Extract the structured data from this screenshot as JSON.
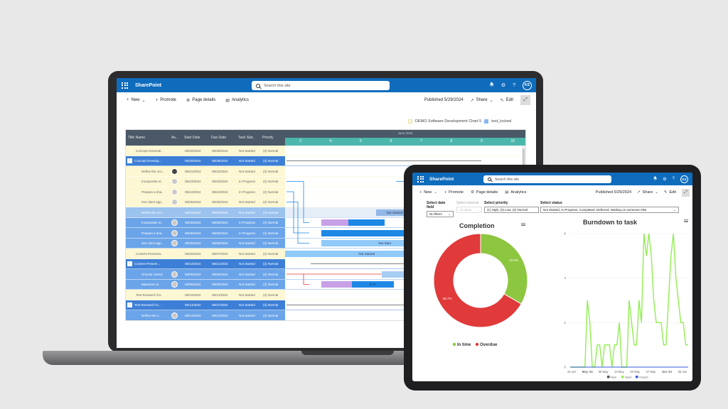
{
  "laptop": {
    "brand": "SharePoint",
    "search_placeholder": "Search this site",
    "avatar_initials": "KS",
    "commands": {
      "new": "New",
      "promote": "Promote",
      "page_details": "Page details",
      "analytics": "Analytics"
    },
    "published": "Published 5/29/2024",
    "share": "Share",
    "edit": "Edit",
    "legend": [
      "DEMO Software Development Chart 5",
      "test_locked"
    ],
    "gantt": {
      "columns": [
        "Title Name",
        "As..",
        "Start Date",
        "Due Date",
        "Task Stat..",
        "Priority"
      ],
      "month": "June 2024",
      "days": [
        "3",
        "4",
        "5",
        "6",
        "7",
        "8",
        "9",
        "10"
      ],
      "rows": [
        {
          "title": "Concept Generati..",
          "start": "05/20/2024",
          "due": "05/28/2024",
          "status": "Not Started",
          "priority": "(2) Normal",
          "style": "yellow",
          "indent": 14,
          "avatar": "",
          "exp": ""
        },
        {
          "title": "Concept Develop...",
          "start": "05/20/2024",
          "due": "06/28/2024",
          "status": "Not Started",
          "priority": "(2) Normal",
          "style": "blue-dark",
          "indent": 12,
          "avatar": "",
          "exp": "-"
        },
        {
          "title": "Define the sco..",
          "start": "05/21/2024",
          "due": "05/22/2024",
          "status": "Not Started",
          "priority": "(2) Normal",
          "style": "yellow",
          "indent": 22,
          "avatar": "dark",
          "exp": ""
        },
        {
          "title": "Incorporate st..",
          "start": "05/23/2024",
          "due": "05/23/2024",
          "status": "In Progress",
          "priority": "(2) Normal",
          "style": "yellow",
          "indent": 22,
          "avatar": "gray",
          "exp": ""
        },
        {
          "title": "Prepare a sha..",
          "start": "05/24/2024",
          "due": "05/24/2024",
          "status": "In Progress",
          "priority": "(2) Normal",
          "style": "yellow",
          "indent": 22,
          "avatar": "gray",
          "exp": ""
        },
        {
          "title": "Get client app..",
          "start": "05/25/2024",
          "due": "05/25/2024",
          "status": "Not Started",
          "priority": "(2) Normal",
          "style": "yellow",
          "indent": 22,
          "avatar": "gray",
          "exp": ""
        },
        {
          "title": "Define the sco..",
          "start": "06/04/2024",
          "due": "06/05/2024",
          "status": "Not Started",
          "priority": "(2) Normal",
          "style": "blue-light",
          "indent": 22,
          "avatar": "",
          "exp": ""
        },
        {
          "title": "Incorporate st..",
          "start": "06/05/2024",
          "due": "06/05/2024",
          "status": "In Progress",
          "priority": "(2) Normal",
          "style": "blue",
          "indent": 22,
          "avatar": "gray",
          "exp": ""
        },
        {
          "title": "Prepare a sha..",
          "start": "06/06/2024",
          "due": "06/06/2024",
          "status": "In Progress",
          "priority": "(2) Normal",
          "style": "blue",
          "indent": 22,
          "avatar": "gray",
          "exp": ""
        },
        {
          "title": "Get client app..",
          "start": "06/06/2024",
          "due": "06/06/2024",
          "status": "Not Started",
          "priority": "(2) Normal",
          "style": "blue",
          "indent": 22,
          "avatar": "gray",
          "exp": ""
        },
        {
          "title": "Content Presenta..",
          "start": "05/20/2024",
          "due": "06/07/2024",
          "status": "Not Started",
          "priority": "(2) Normal",
          "style": "yellow",
          "indent": 14,
          "avatar": "",
          "exp": ""
        },
        {
          "title": "Content Present...",
          "start": "06/13/2024",
          "due": "06/21/2024",
          "status": "Not Started",
          "priority": "(2) Normal",
          "style": "blue-dark",
          "indent": 12,
          "avatar": "",
          "exp": "-"
        },
        {
          "title": "Choose Unred..",
          "start": "06/06/2024",
          "due": "06/06/2024",
          "status": "Not Started",
          "priority": "(2) Normal",
          "style": "blue",
          "indent": 22,
          "avatar": "gray",
          "exp": ""
        },
        {
          "title": "Maximise at ..",
          "start": "06/06/2024",
          "due": "06/06/2024",
          "status": "Not Started",
          "priority": "(2) Normal",
          "style": "blue",
          "indent": 22,
          "avatar": "gray",
          "exp": ""
        },
        {
          "title": "Test Research for..",
          "start": "06/10/2024",
          "due": "06/14/2024",
          "status": "Not Started",
          "priority": "(2) Normal",
          "style": "yellow",
          "indent": 14,
          "avatar": "",
          "exp": ""
        },
        {
          "title": "Test Research fo...",
          "start": "06/14/2024",
          "due": "06/27/2024",
          "status": "Not Started",
          "priority": "(2) Normal",
          "style": "blue-dark",
          "indent": 12,
          "avatar": "",
          "exp": "-"
        },
        {
          "title": "Define the s..",
          "start": "06/14/2024",
          "due": "06/14/2024",
          "status": "Not Started",
          "priority": "(2) Normal",
          "style": "blue",
          "indent": 22,
          "avatar": "gray",
          "exp": ""
        }
      ],
      "bars": [
        {
          "row": 6,
          "day": 5.0,
          "span": 1.25,
          "color": "#90b8e6",
          "label": "Not Started"
        },
        {
          "row": 7,
          "day": 3.2,
          "span": 0.9,
          "color": "#c8a0e6",
          "label": ""
        },
        {
          "row": 7,
          "day": 4.1,
          "span": 1.2,
          "color": "#1e88e5",
          "label": ""
        },
        {
          "row": 8,
          "day": 3.2,
          "span": 4.2,
          "color": "#1e88e5",
          "label": ""
        },
        {
          "row": 9,
          "day": 3.2,
          "span": 4.2,
          "color": "#90caf9",
          "label": "Not Start"
        },
        {
          "row": 10,
          "day": 2.0,
          "span": 5.4,
          "color": "#90caf9",
          "label": "Not Started"
        },
        {
          "row": 12,
          "day": 5.2,
          "span": 2.2,
          "color": "#a8cdf4",
          "label": ""
        },
        {
          "row": 13,
          "day": 3.2,
          "span": 1.0,
          "color": "#c8a0e6",
          "label": ""
        },
        {
          "row": 13,
          "day": 4.2,
          "span": 1.4,
          "color": "#1e88e5",
          "label": "In Pr"
        }
      ]
    }
  },
  "tablet": {
    "brand": "SharePoint",
    "search_placeholder": "Search this site",
    "avatar_initials": "KS",
    "commands": {
      "new": "New",
      "promote": "Promote",
      "page_details": "Page details",
      "analytics": "Analytics"
    },
    "published": "Published 5/29/2024",
    "share": "Share",
    "edit": "Edit",
    "filters": {
      "date_label": "Select date field",
      "date_value": "No filters",
      "interval_label": "Select interval",
      "interval_value": "All dates",
      "priority_label": "Select priority",
      "priority_value": "(1) High, (3) Low, (2) Normal",
      "status_label": "Select status",
      "status_value": "Not Started, In Progress, Completed, Deferred, Waiting on someone else"
    }
  },
  "chart_data": [
    {
      "type": "pie",
      "title": "Completion",
      "labels": [
        "In time",
        "Overdue"
      ],
      "values": [
        33.3,
        66.7
      ],
      "value_labels": [
        "33.3%",
        "66.7%"
      ],
      "colors": [
        "#8dc63f",
        "#e03a3a"
      ],
      "legend_position": "bottom"
    },
    {
      "type": "line",
      "title": "Burndown to task",
      "x_tick_labels": [
        "24 Apr",
        "May '24",
        "06 May",
        "13 May",
        "20 May",
        "27 May",
        "Jun '24",
        "08 Jun"
      ],
      "y_ticks": [
        0,
        2,
        4,
        6
      ],
      "ylim": [
        0,
        6
      ],
      "legend_position": "bottom",
      "x_index": [
        0,
        1,
        2,
        3,
        4,
        5,
        6,
        7,
        8,
        9,
        10,
        11,
        12,
        13,
        14,
        15,
        16,
        17,
        18,
        19,
        20,
        21,
        22,
        23,
        24,
        25,
        26,
        27,
        28,
        29,
        30,
        31,
        32,
        33,
        34,
        35,
        36,
        37,
        38,
        39,
        40,
        41,
        42,
        43,
        44,
        45,
        46,
        47,
        48
      ],
      "series": [
        {
          "name": "New",
          "color": "#555555",
          "values": [
            0,
            0,
            0,
            0,
            0,
            0,
            0,
            0,
            0,
            0,
            0,
            0,
            0,
            0,
            0,
            0,
            0,
            0,
            0,
            0,
            0,
            0,
            0,
            0,
            0,
            0,
            0,
            0,
            0,
            0,
            0,
            0,
            0,
            0,
            0,
            0,
            0,
            0,
            0,
            0,
            0,
            0,
            0,
            0,
            0,
            0,
            0,
            0,
            0
          ]
        },
        {
          "name": "Open",
          "color": "#90ee50",
          "values": [
            0,
            0,
            0,
            0,
            0,
            0,
            0,
            3,
            2,
            0,
            0,
            1,
            1,
            0,
            1,
            1,
            1,
            0,
            1,
            1,
            2,
            0,
            0,
            0,
            3,
            2,
            1,
            1,
            3,
            2,
            6,
            5,
            6,
            5,
            3,
            2,
            2,
            2,
            1,
            1,
            3,
            5,
            6,
            4,
            3,
            2,
            2,
            1,
            1
          ]
        },
        {
          "name": "Closed",
          "color": "#3a5bd9",
          "values": [
            0,
            0,
            0,
            0,
            0,
            0,
            0,
            0,
            0,
            0,
            0,
            0,
            0,
            0,
            0,
            0,
            0,
            0,
            0,
            0,
            0,
            0,
            0,
            0,
            0,
            0,
            0,
            0,
            0,
            0,
            0,
            0,
            0,
            0,
            0,
            0,
            0,
            0,
            0,
            0,
            0,
            0,
            0,
            0,
            0,
            0,
            0,
            0,
            0
          ]
        }
      ]
    }
  ]
}
